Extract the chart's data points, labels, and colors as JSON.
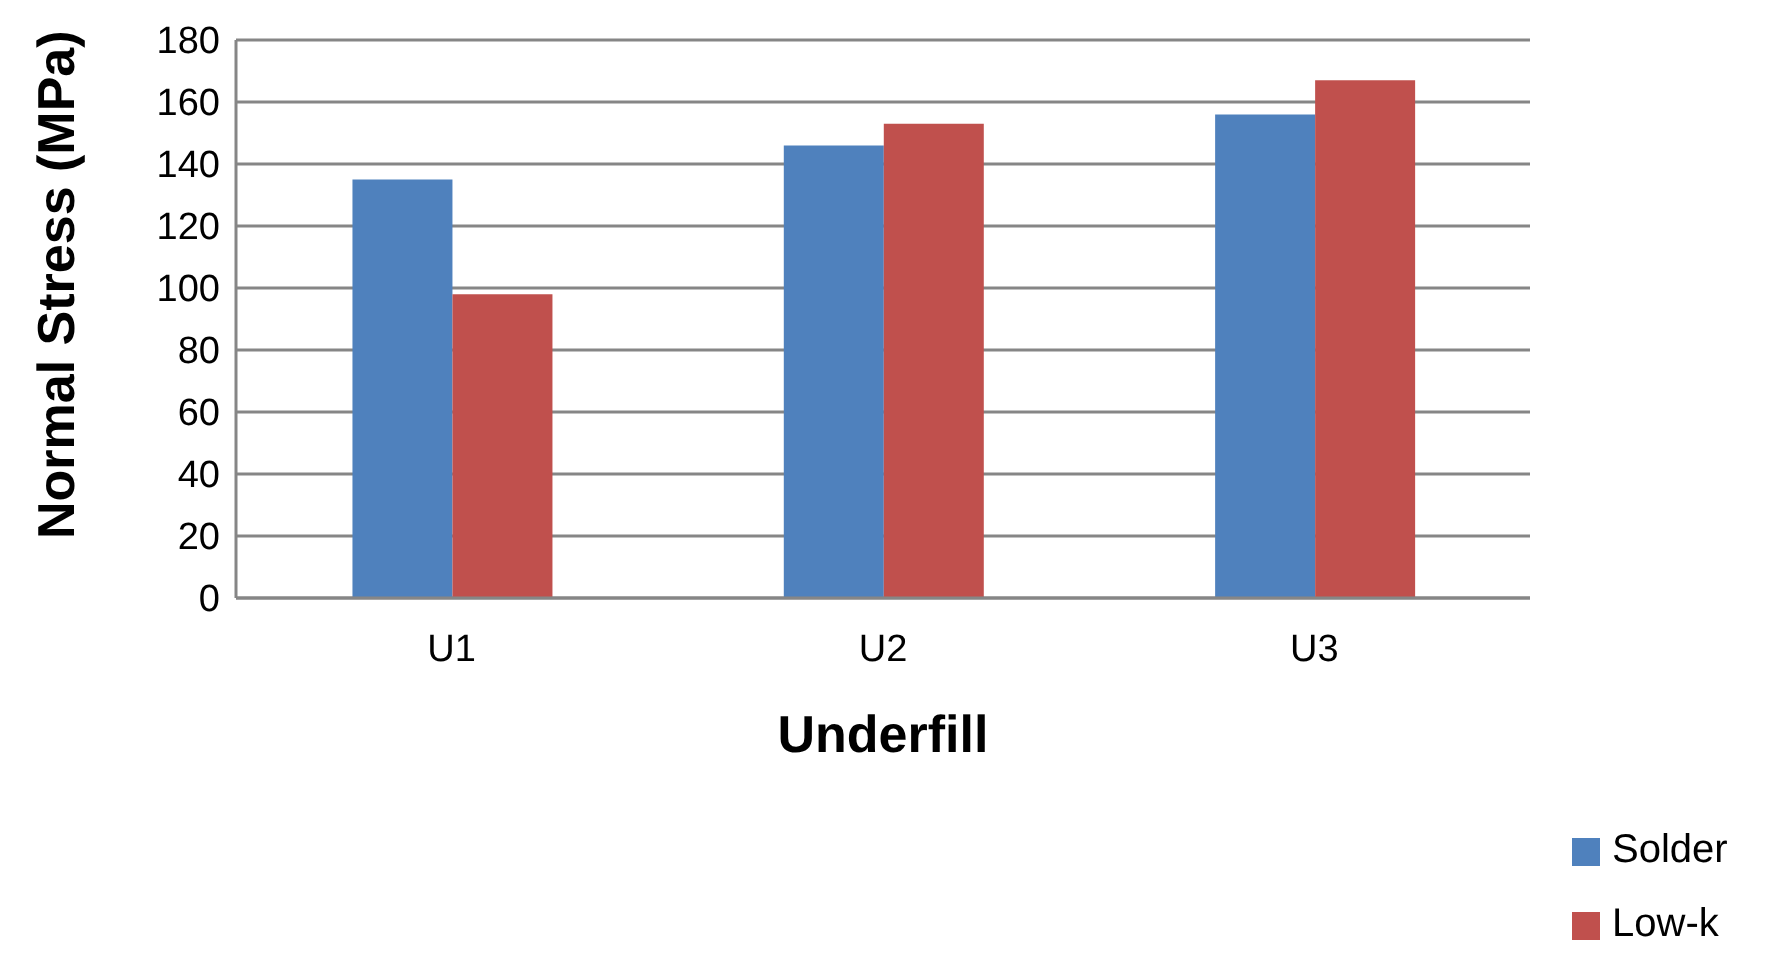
{
  "chart_data": {
    "type": "bar",
    "xlabel": "Underfill",
    "ylabel": "Normal Stress (MPa)",
    "categories": [
      "U1",
      "U2",
      "U3"
    ],
    "series": [
      {
        "name": "Solder",
        "color": "#4f81bd",
        "values": [
          135,
          146,
          156
        ]
      },
      {
        "name": "Low-k",
        "color": "#c0504d",
        "values": [
          98,
          153,
          167
        ]
      }
    ],
    "ylim": [
      0,
      180
    ],
    "yticks": [
      0,
      20,
      40,
      60,
      80,
      100,
      120,
      140,
      160,
      180
    ],
    "grid": "y",
    "legend": "bottom right"
  }
}
